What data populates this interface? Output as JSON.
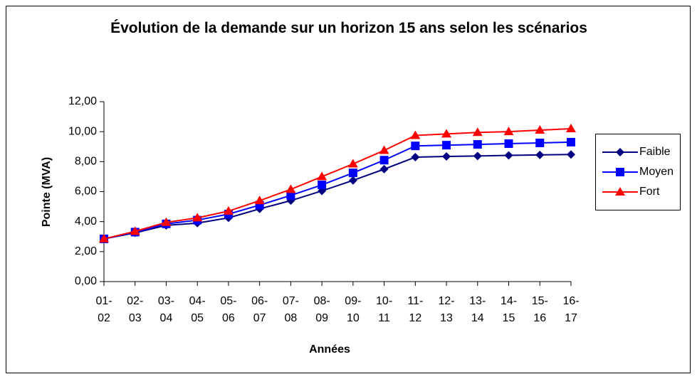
{
  "chart_data": {
    "type": "line",
    "title": "Évolution de la demande sur un horizon 15 ans selon les scénarios",
    "x_label": "Années",
    "y_label": "Pointe (MVA)",
    "categories": [
      "01-02",
      "02-03",
      "03-04",
      "04-05",
      "05-06",
      "06-07",
      "07-08",
      "08-09",
      "09-10",
      "10-11",
      "11-12",
      "12-13",
      "13-14",
      "14-15",
      "15-16",
      "16-17"
    ],
    "series": [
      {
        "name": "Faible",
        "color": "#000080",
        "marker": "diamond",
        "values": [
          2.85,
          3.25,
          3.75,
          3.9,
          4.25,
          4.85,
          5.4,
          6.05,
          6.75,
          7.5,
          8.3,
          8.35,
          8.38,
          8.42,
          8.45,
          8.48
        ]
      },
      {
        "name": "Moyen",
        "color": "#0000ff",
        "marker": "square",
        "values": [
          2.85,
          3.3,
          3.85,
          4.1,
          4.5,
          5.1,
          5.75,
          6.45,
          7.25,
          8.1,
          9.05,
          9.1,
          9.15,
          9.2,
          9.25,
          9.3
        ]
      },
      {
        "name": "Fort",
        "color": "#ff0000",
        "marker": "triangle",
        "values": [
          2.85,
          3.35,
          3.95,
          4.25,
          4.7,
          5.4,
          6.15,
          7.0,
          7.85,
          8.75,
          9.75,
          9.85,
          9.95,
          10.0,
          10.1,
          10.2
        ]
      }
    ],
    "ylim": [
      0,
      12
    ],
    "yticks": [
      {
        "value": 0,
        "label": "0,00"
      },
      {
        "value": 2,
        "label": "2,00"
      },
      {
        "value": 4,
        "label": "4,00"
      },
      {
        "value": 6,
        "label": "6,00"
      },
      {
        "value": 8,
        "label": "8,00"
      },
      {
        "value": 10,
        "label": "10,00"
      },
      {
        "value": 12,
        "label": "12,00"
      }
    ],
    "grid": false,
    "legend": "right"
  }
}
